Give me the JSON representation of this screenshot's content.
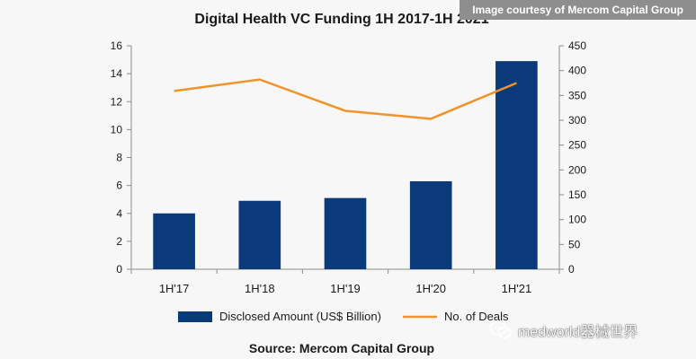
{
  "courtesy_label": "Image courtesy of Mercom Capital Group",
  "watermark": {
    "text": "medworld器械世界",
    "icon": "wechat-icon"
  },
  "colors": {
    "bar": "#0b3a7a",
    "line": "#f0932b",
    "axis": "#8c8c8c",
    "text": "#1a1a1a"
  },
  "chart_data": {
    "type": "bar",
    "title": "Digital Health VC Funding 1H 2017-1H 2021",
    "source": "Source: Mercom Capital Group",
    "categories": [
      "1H'17",
      "1H'18",
      "1H'19",
      "1H'20",
      "1H'21"
    ],
    "series": [
      {
        "name": "Disclosed Amount (US$ Billion)",
        "type": "bar",
        "axis": "left",
        "values": [
          4.0,
          4.9,
          5.1,
          6.3,
          14.9
        ]
      },
      {
        "name": "No. of Deals",
        "type": "line",
        "axis": "right",
        "values": [
          359,
          382,
          319,
          303,
          375
        ]
      }
    ],
    "y_left": {
      "ylim": [
        0,
        16
      ],
      "ticks": [
        "0",
        "2",
        "4",
        "6",
        "8",
        "10",
        "12",
        "14",
        "16"
      ]
    },
    "y_right": {
      "ylim": [
        0,
        450
      ],
      "ticks": [
        "0",
        "50",
        "100",
        "150",
        "200",
        "250",
        "300",
        "350",
        "400",
        "450"
      ]
    },
    "xlabel": "",
    "ylabel": "",
    "grid": false,
    "legend_position": "bottom"
  }
}
